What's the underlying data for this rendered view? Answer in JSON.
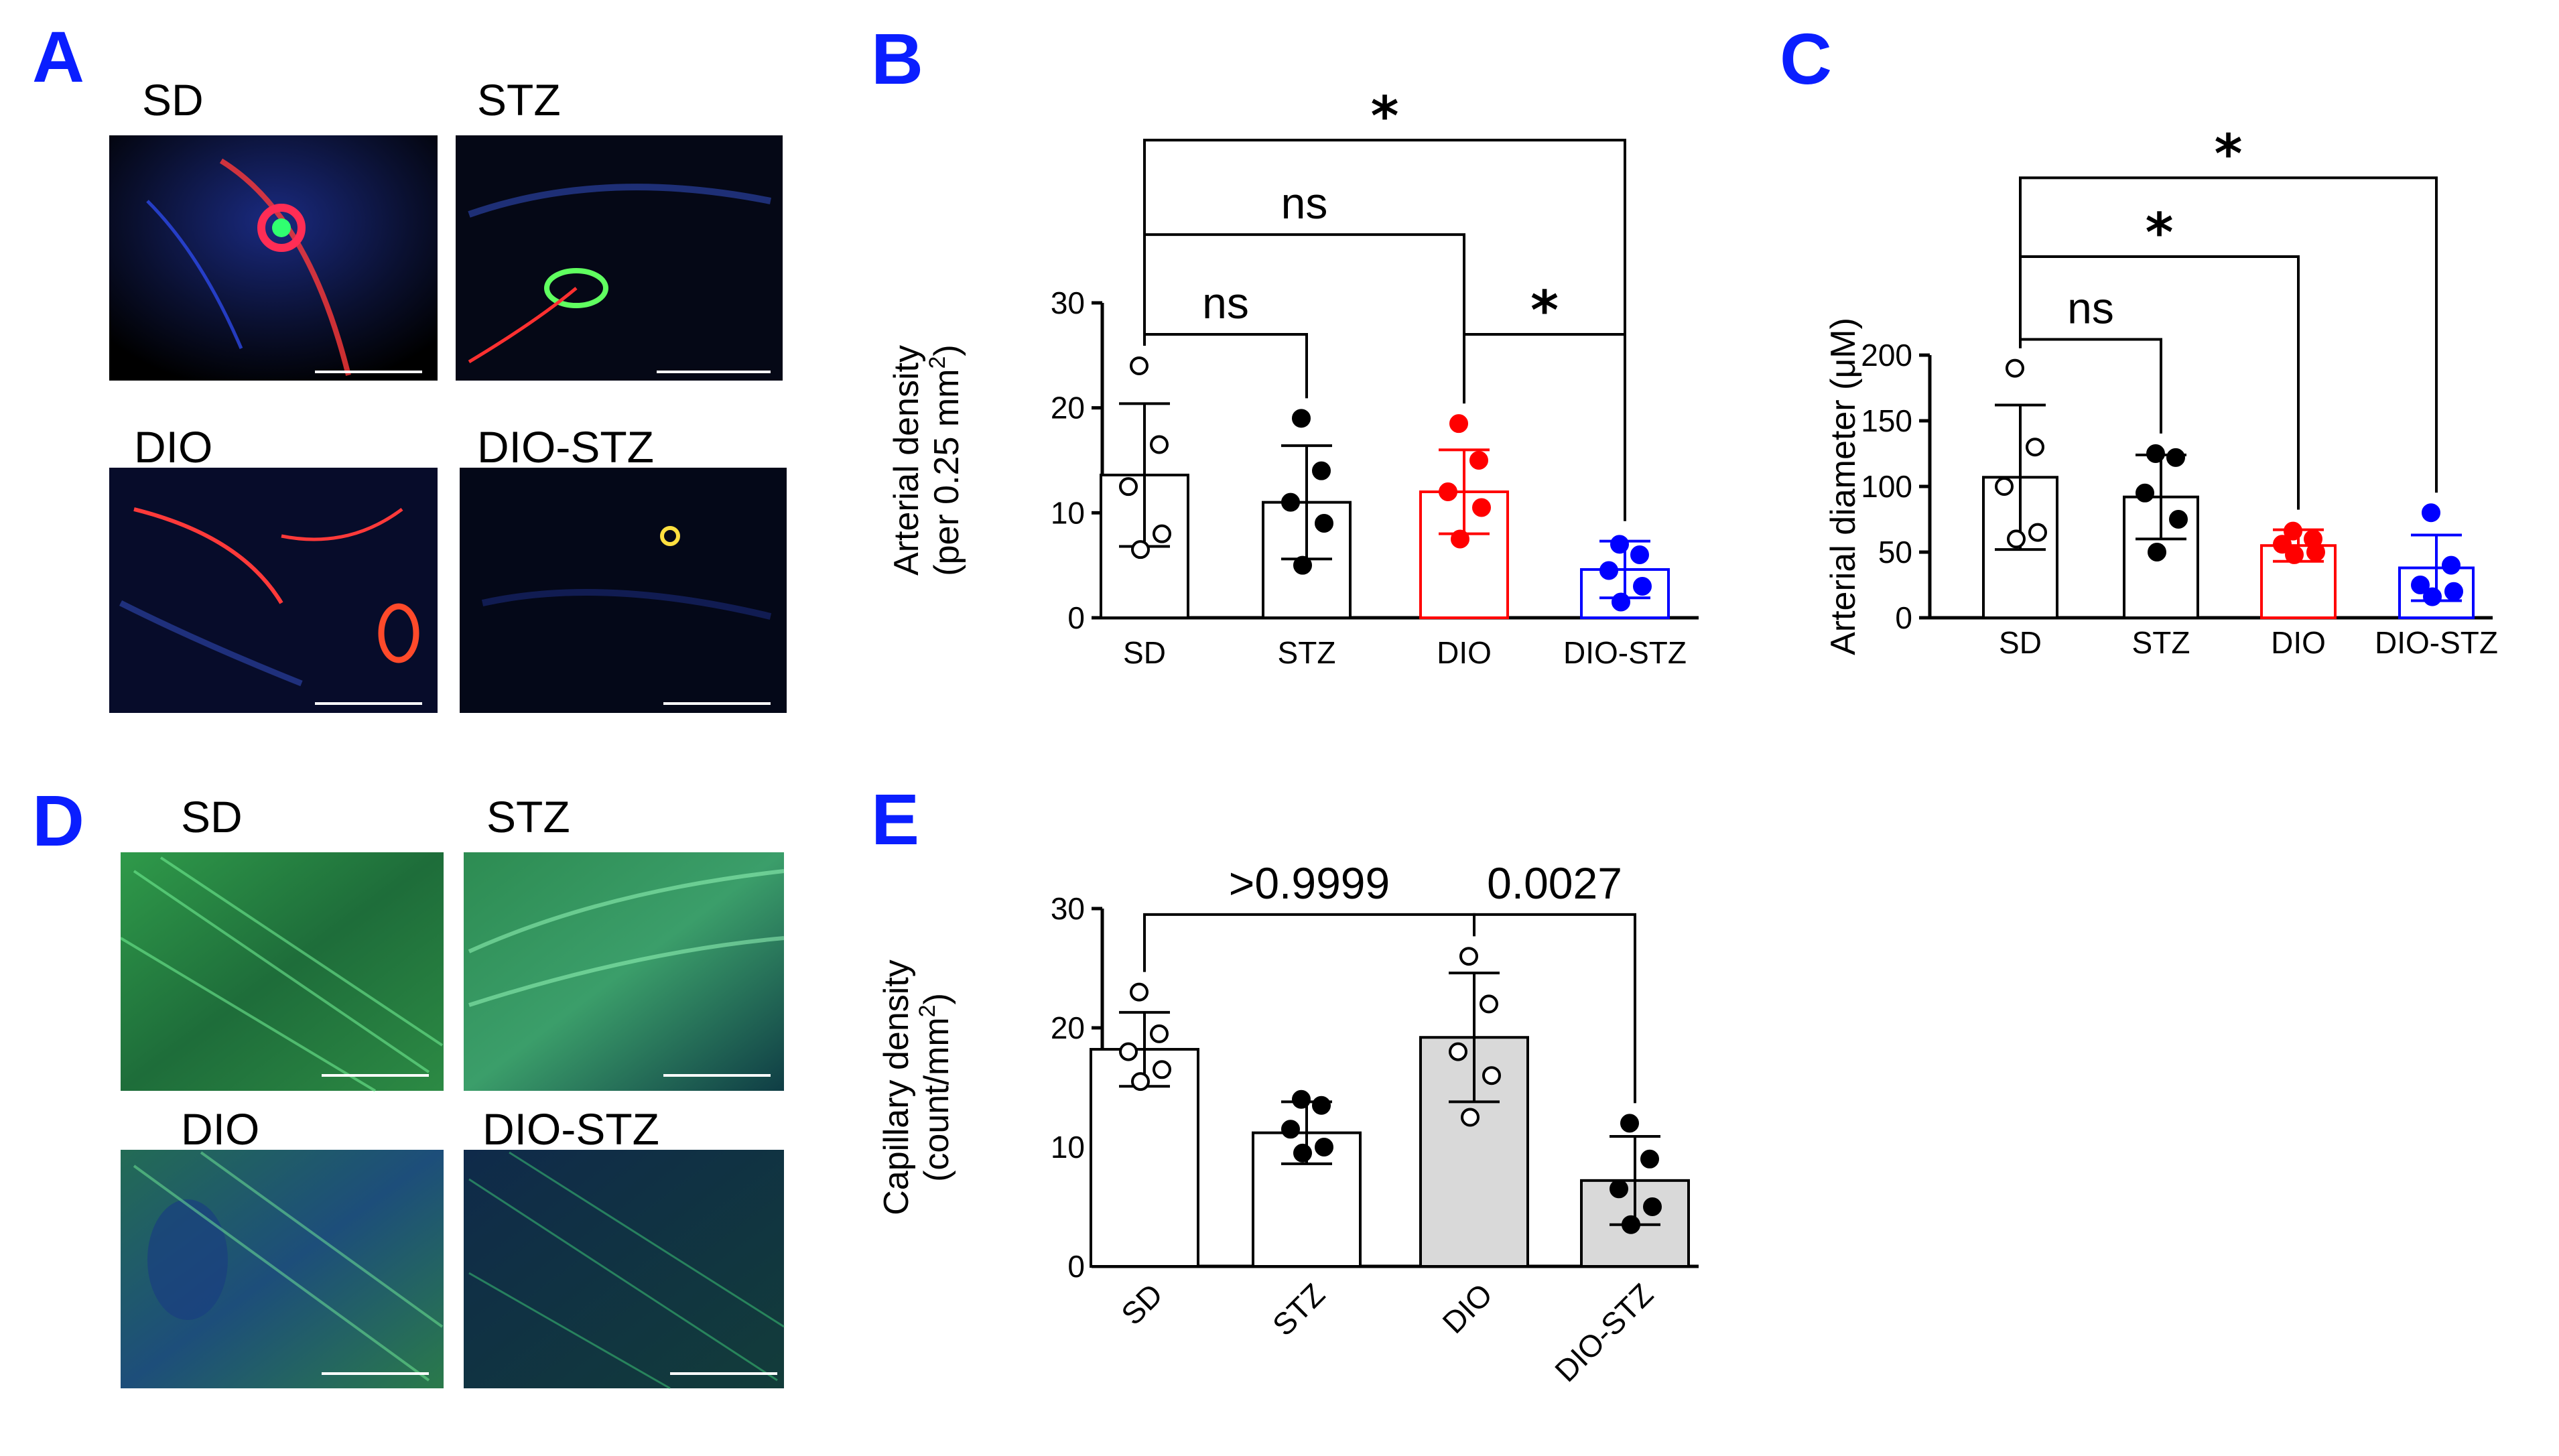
{
  "panels": {
    "A": {
      "label": "A",
      "images": [
        "SD",
        "STZ",
        "DIO",
        "DIO-STZ"
      ]
    },
    "D": {
      "label": "D",
      "images": [
        "SD",
        "STZ",
        "DIO",
        "DIO-STZ"
      ]
    }
  },
  "chart_data": [
    {
      "panel": "B",
      "type": "bar",
      "categories": [
        "SD",
        "STZ",
        "DIO",
        "DIO-STZ"
      ],
      "ylabel_line1": "Arterial density",
      "ylabel_line2": "(per 0.25 mm",
      "ylabel_sup": "2",
      "ylabel_close": ")",
      "ylim": [
        0,
        30
      ],
      "yticks": [
        0,
        10,
        20,
        30
      ],
      "means": [
        13.6,
        11.0,
        12.0,
        4.6
      ],
      "sd": [
        6.8,
        5.4,
        4.0,
        2.7
      ],
      "bar_colors": [
        "#000000",
        "#000000",
        "#ff0000",
        "#0000ff"
      ],
      "bar_fills": [
        "#ffffff",
        "#ffffff",
        "#ffffff",
        "#ffffff"
      ],
      "point_colors": [
        "#ffffff",
        "#000000",
        "#ff0000",
        "#0000ff"
      ],
      "points": [
        [
          24,
          16.5,
          12.5,
          8,
          6.5
        ],
        [
          19,
          14,
          11,
          9,
          5
        ],
        [
          18.5,
          15,
          12,
          10.5,
          7.5
        ],
        [
          7,
          6,
          4.5,
          3,
          1.5
        ]
      ],
      "comparisons": [
        {
          "from": 0,
          "to": 1,
          "level": 27,
          "label": "ns"
        },
        {
          "from": 2,
          "to": 3,
          "level": 27,
          "label": "*"
        },
        {
          "from": 0,
          "to": 2,
          "level": 36.5,
          "label": "ns"
        },
        {
          "from": 0,
          "to": 3,
          "level": 45.5,
          "label": "*"
        }
      ]
    },
    {
      "panel": "C",
      "type": "bar",
      "categories": [
        "SD",
        "STZ",
        "DIO",
        "DIO-STZ"
      ],
      "ylabel_line1": "Arterial diameter (μM)",
      "ylim": [
        0,
        200
      ],
      "yticks": [
        0,
        50,
        100,
        150,
        200
      ],
      "means": [
        107,
        92,
        55,
        38
      ],
      "sd": [
        55,
        32,
        12,
        25
      ],
      "bar_colors": [
        "#000000",
        "#000000",
        "#ff0000",
        "#0000ff"
      ],
      "bar_fills": [
        "#ffffff",
        "#ffffff",
        "#ffffff",
        "#ffffff"
      ],
      "point_colors": [
        "#ffffff",
        "#000000",
        "#ff0000",
        "#0000ff"
      ],
      "points": [
        [
          190,
          130,
          100,
          65,
          60
        ],
        [
          125,
          122,
          95,
          75,
          50
        ],
        [
          66,
          60,
          56,
          50,
          48
        ],
        [
          80,
          40,
          25,
          20,
          16
        ]
      ],
      "comparisons": [
        {
          "from": 0,
          "to": 1,
          "level": 212,
          "label": "ns"
        },
        {
          "from": 0,
          "to": 2,
          "level": 275,
          "label": "*"
        },
        {
          "from": 0,
          "to": 3,
          "level": 335,
          "label": "*"
        }
      ]
    },
    {
      "panel": "E",
      "type": "bar",
      "categories": [
        "SD",
        "STZ",
        "DIO",
        "DIO-STZ"
      ],
      "ylabel_line1": "Capillary density",
      "ylabel_line2": "(count/mm",
      "ylabel_sup": "2",
      "ylabel_close": ")",
      "ylim": [
        0,
        30
      ],
      "yticks": [
        0,
        10,
        20,
        30
      ],
      "means": [
        18.2,
        11.2,
        19.2,
        7.2
      ],
      "sd": [
        3.1,
        2.6,
        5.4,
        3.7
      ],
      "bar_colors": [
        "#000000",
        "#000000",
        "#000000",
        "#000000"
      ],
      "bar_fills": [
        "#ffffff",
        "#ffffff",
        "#d9d9d9",
        "#d9d9d9"
      ],
      "point_colors": [
        "#ffffff",
        "#000000",
        "#ffffff",
        "#000000"
      ],
      "points": [
        [
          23,
          19.5,
          18,
          16.5,
          15.5
        ],
        [
          14,
          13.5,
          11.5,
          10,
          9.5
        ],
        [
          26,
          22,
          18,
          16,
          12.5
        ],
        [
          12,
          9,
          6.5,
          5,
          3.5
        ]
      ],
      "comparisons": [
        {
          "from": 0,
          "to": 2,
          "level": 29.5,
          "label": ">0.9999"
        },
        {
          "from": 2,
          "to": 3,
          "level": 29.5,
          "label": "0.0027"
        }
      ]
    }
  ]
}
